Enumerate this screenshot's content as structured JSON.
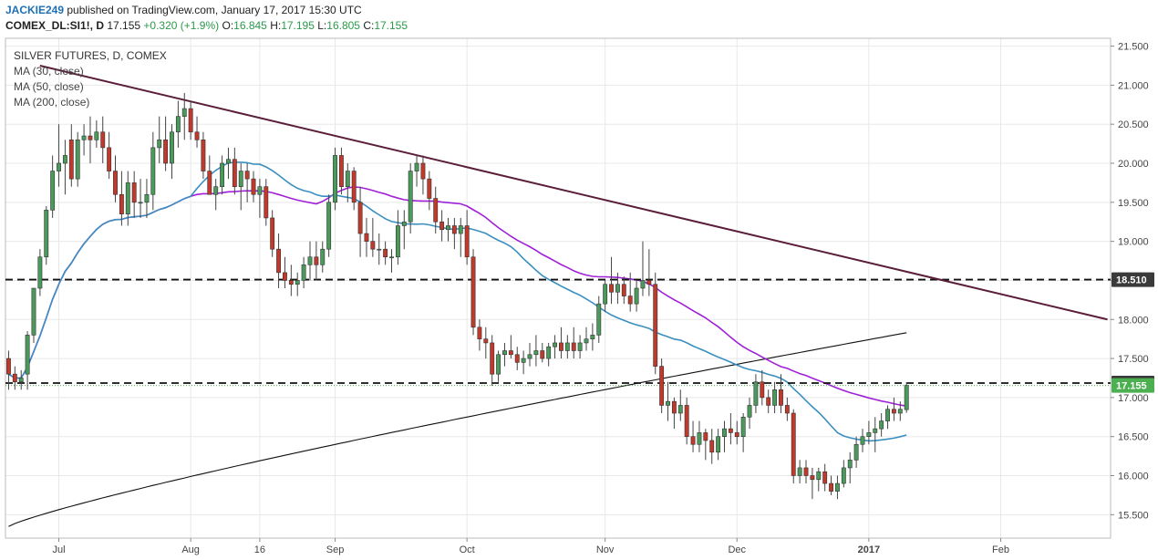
{
  "header": {
    "author": "JACKIE249",
    "published": "published on TradingView.com, January 17, 2017 15:30 UTC",
    "symbol": "COMEX_DL:SI1!, D",
    "last": "17.155",
    "change": "+0.320 (+1.9%)",
    "o_label": "O:",
    "o_value": "16.845",
    "h_label": "H:",
    "h_value": "17.195",
    "l_label": "L:",
    "l_value": "16.805",
    "c_label": "C:",
    "c_value": "17.155"
  },
  "legend": {
    "title": "SILVER FUTURES, D, COMEX",
    "ma30": "MA (30, close)",
    "ma50": "MA (50, close)",
    "ma200": "MA (200, close)"
  },
  "colors": {
    "up": "#4a9a5c",
    "down": "#c0392b",
    "wick": "#444444",
    "ma30": "#3b8fc0",
    "ma50": "#a020d8",
    "ma200": "#111111",
    "trendline": "#5a1e3a",
    "grid": "#e8e8e8",
    "axis_tag_bg": "#3a3a3a",
    "last_tag_bg": "#4caf50"
  },
  "chart_data": {
    "type": "candlestick",
    "title": "SILVER FUTURES, D, COMEX",
    "ylim": [
      15.2,
      21.6
    ],
    "y_ticks": [
      "21.500",
      "21.000",
      "20.500",
      "20.000",
      "19.500",
      "19.000",
      "18.500",
      "18.000",
      "17.500",
      "17.000",
      "16.500",
      "16.000",
      "15.500"
    ],
    "x_ticks": [
      {
        "label": "Jul",
        "bold": false,
        "bar": 8
      },
      {
        "label": "Aug",
        "bold": false,
        "bar": 29
      },
      {
        "label": "16",
        "bold": false,
        "bar": 40
      },
      {
        "label": "Sep",
        "bold": false,
        "bar": 52
      },
      {
        "label": "Oct",
        "bold": false,
        "bar": 73
      },
      {
        "label": "Nov",
        "bold": false,
        "bar": 95
      },
      {
        "label": "Dec",
        "bold": false,
        "bar": 116
      },
      {
        "label": "2017",
        "bold": true,
        "bar": 137
      },
      {
        "label": "Feb",
        "bold": false,
        "bar": 158
      }
    ],
    "n_bars_axis": 176,
    "candles": [
      [
        17.5,
        17.6,
        17.1,
        17.3
      ],
      [
        17.3,
        17.4,
        17.1,
        17.2
      ],
      [
        17.2,
        17.35,
        17.1,
        17.25
      ],
      [
        17.3,
        17.85,
        17.1,
        17.8
      ],
      [
        17.8,
        18.4,
        17.7,
        18.4
      ],
      [
        18.4,
        18.9,
        18.3,
        18.8
      ],
      [
        18.8,
        19.45,
        18.7,
        19.4
      ],
      [
        19.4,
        20.1,
        19.3,
        19.9
      ],
      [
        19.9,
        20.5,
        19.7,
        20.0
      ],
      [
        20.0,
        20.3,
        19.6,
        20.1
      ],
      [
        20.3,
        20.5,
        19.7,
        19.8
      ],
      [
        19.8,
        20.4,
        19.7,
        20.3
      ],
      [
        20.3,
        20.5,
        20.1,
        20.35
      ],
      [
        20.35,
        20.6,
        20.0,
        20.3
      ],
      [
        20.3,
        20.55,
        20.2,
        20.4
      ],
      [
        20.4,
        20.6,
        20.0,
        20.2
      ],
      [
        20.2,
        20.4,
        19.8,
        19.9
      ],
      [
        19.9,
        20.1,
        19.5,
        19.6
      ],
      [
        19.6,
        19.9,
        19.2,
        19.35
      ],
      [
        19.35,
        19.9,
        19.2,
        19.75
      ],
      [
        19.75,
        19.9,
        19.3,
        19.5
      ],
      [
        19.5,
        19.8,
        19.3,
        19.5
      ],
      [
        19.5,
        19.8,
        19.3,
        19.6
      ],
      [
        19.6,
        20.4,
        19.4,
        20.2
      ],
      [
        20.2,
        20.6,
        20.0,
        20.3
      ],
      [
        20.3,
        20.6,
        19.9,
        20.0
      ],
      [
        20.0,
        20.5,
        19.8,
        20.4
      ],
      [
        20.4,
        20.8,
        20.2,
        20.6
      ],
      [
        20.6,
        20.9,
        20.3,
        20.7
      ],
      [
        20.7,
        20.8,
        20.3,
        20.4
      ],
      [
        20.4,
        20.6,
        20.2,
        20.3
      ],
      [
        20.3,
        20.4,
        19.8,
        19.9
      ],
      [
        19.9,
        20.1,
        19.6,
        19.6
      ],
      [
        19.6,
        19.8,
        19.4,
        19.7
      ],
      [
        19.7,
        20.1,
        19.6,
        20.0
      ],
      [
        20.0,
        20.2,
        19.8,
        20.05
      ],
      [
        20.05,
        20.2,
        19.6,
        19.7
      ],
      [
        19.7,
        20.0,
        19.4,
        19.9
      ],
      [
        19.9,
        20.0,
        19.5,
        19.8
      ],
      [
        19.8,
        19.9,
        19.5,
        19.6
      ],
      [
        19.6,
        19.8,
        19.3,
        19.7
      ],
      [
        19.7,
        19.8,
        19.2,
        19.3
      ],
      [
        19.3,
        19.4,
        18.8,
        18.9
      ],
      [
        18.9,
        19.1,
        18.4,
        18.6
      ],
      [
        18.6,
        18.8,
        18.4,
        18.5
      ],
      [
        18.5,
        18.7,
        18.3,
        18.45
      ],
      [
        18.45,
        18.6,
        18.3,
        18.5
      ],
      [
        18.5,
        18.8,
        18.4,
        18.7
      ],
      [
        18.7,
        19.0,
        18.5,
        18.8
      ],
      [
        18.8,
        19.0,
        18.5,
        18.7
      ],
      [
        18.7,
        19.0,
        18.6,
        18.9
      ],
      [
        18.9,
        19.6,
        18.8,
        19.5
      ],
      [
        19.5,
        20.2,
        19.4,
        20.1
      ],
      [
        20.1,
        20.2,
        19.6,
        19.7
      ],
      [
        19.7,
        20.0,
        19.5,
        19.9
      ],
      [
        19.9,
        19.95,
        19.4,
        19.5
      ],
      [
        19.5,
        19.7,
        18.8,
        19.1
      ],
      [
        19.1,
        19.3,
        18.8,
        19.0
      ],
      [
        19.0,
        19.3,
        18.8,
        18.9
      ],
      [
        18.9,
        19.1,
        18.7,
        18.9
      ],
      [
        18.9,
        19.0,
        18.7,
        18.8
      ],
      [
        18.8,
        18.9,
        18.6,
        18.8
      ],
      [
        18.8,
        19.4,
        18.7,
        19.2
      ],
      [
        19.2,
        19.4,
        18.9,
        19.25
      ],
      [
        19.25,
        20.0,
        19.1,
        19.9
      ],
      [
        19.9,
        20.1,
        19.7,
        20.0
      ],
      [
        20.0,
        20.1,
        19.6,
        19.8
      ],
      [
        19.8,
        19.9,
        19.4,
        19.55
      ],
      [
        19.55,
        19.7,
        19.1,
        19.25
      ],
      [
        19.25,
        19.4,
        19.0,
        19.15
      ],
      [
        19.15,
        19.3,
        19.0,
        19.2
      ],
      [
        19.2,
        19.3,
        18.9,
        19.1
      ],
      [
        19.1,
        19.3,
        18.8,
        19.2
      ],
      [
        19.2,
        19.4,
        18.7,
        18.8
      ],
      [
        18.8,
        18.9,
        17.8,
        17.9
      ],
      [
        17.9,
        18.0,
        17.6,
        17.75
      ],
      [
        17.75,
        17.9,
        17.5,
        17.7
      ],
      [
        17.7,
        17.8,
        17.15,
        17.3
      ],
      [
        17.3,
        17.6,
        17.2,
        17.55
      ],
      [
        17.55,
        17.7,
        17.4,
        17.6
      ],
      [
        17.6,
        17.8,
        17.5,
        17.55
      ],
      [
        17.55,
        17.65,
        17.35,
        17.45
      ],
      [
        17.45,
        17.6,
        17.3,
        17.5
      ],
      [
        17.5,
        17.7,
        17.4,
        17.55
      ],
      [
        17.55,
        17.8,
        17.4,
        17.6
      ],
      [
        17.6,
        17.7,
        17.45,
        17.5
      ],
      [
        17.5,
        17.7,
        17.4,
        17.65
      ],
      [
        17.65,
        17.8,
        17.5,
        17.7
      ],
      [
        17.7,
        17.9,
        17.5,
        17.6
      ],
      [
        17.6,
        17.8,
        17.5,
        17.7
      ],
      [
        17.7,
        17.9,
        17.5,
        17.6
      ],
      [
        17.6,
        17.8,
        17.5,
        17.7
      ],
      [
        17.7,
        17.9,
        17.6,
        17.75
      ],
      [
        17.75,
        17.95,
        17.6,
        17.8
      ],
      [
        17.8,
        18.3,
        17.7,
        18.2
      ],
      [
        18.2,
        18.5,
        18.1,
        18.45
      ],
      [
        18.45,
        18.8,
        18.2,
        18.35
      ],
      [
        18.35,
        18.6,
        18.2,
        18.45
      ],
      [
        18.45,
        18.55,
        18.2,
        18.3
      ],
      [
        18.3,
        18.6,
        18.1,
        18.2
      ],
      [
        18.2,
        18.5,
        18.1,
        18.4
      ],
      [
        18.4,
        19.0,
        18.3,
        18.5
      ],
      [
        18.5,
        18.9,
        18.3,
        18.45
      ],
      [
        18.45,
        18.6,
        17.3,
        17.4
      ],
      [
        17.4,
        17.5,
        16.8,
        16.9
      ],
      [
        16.9,
        17.2,
        16.7,
        16.95
      ],
      [
        16.95,
        17.0,
        16.6,
        16.8
      ],
      [
        16.8,
        17.1,
        16.7,
        16.9
      ],
      [
        16.9,
        17.0,
        16.4,
        16.5
      ],
      [
        16.5,
        16.7,
        16.3,
        16.4
      ],
      [
        16.4,
        16.7,
        16.3,
        16.55
      ],
      [
        16.55,
        16.6,
        16.2,
        16.45
      ],
      [
        16.45,
        16.6,
        16.15,
        16.3
      ],
      [
        16.3,
        16.6,
        16.2,
        16.5
      ],
      [
        16.5,
        16.7,
        16.3,
        16.6
      ],
      [
        16.6,
        16.8,
        16.4,
        16.55
      ],
      [
        16.55,
        16.7,
        16.4,
        16.5
      ],
      [
        16.5,
        16.8,
        16.3,
        16.75
      ],
      [
        16.75,
        17.0,
        16.6,
        16.9
      ],
      [
        16.9,
        17.3,
        16.8,
        17.2
      ],
      [
        17.2,
        17.35,
        16.9,
        17.0
      ],
      [
        17.0,
        17.1,
        16.8,
        16.9
      ],
      [
        16.9,
        17.2,
        16.8,
        17.1
      ],
      [
        17.1,
        17.3,
        16.8,
        16.9
      ],
      [
        16.9,
        17.0,
        16.7,
        16.8
      ],
      [
        16.8,
        16.85,
        15.9,
        16.0
      ],
      [
        16.0,
        16.2,
        15.9,
        16.1
      ],
      [
        16.1,
        16.2,
        15.9,
        16.0
      ],
      [
        16.0,
        16.1,
        15.7,
        15.95
      ],
      [
        15.95,
        16.1,
        15.8,
        16.05
      ],
      [
        16.05,
        16.15,
        15.8,
        15.9
      ],
      [
        15.9,
        16.0,
        15.75,
        15.8
      ],
      [
        15.8,
        16.0,
        15.7,
        15.9
      ],
      [
        15.9,
        16.2,
        15.85,
        16.1
      ],
      [
        16.1,
        16.3,
        15.9,
        16.2
      ],
      [
        16.2,
        16.5,
        16.1,
        16.4
      ],
      [
        16.4,
        16.6,
        16.3,
        16.5
      ],
      [
        16.5,
        16.7,
        16.4,
        16.55
      ],
      [
        16.55,
        16.75,
        16.3,
        16.6
      ],
      [
        16.6,
        16.8,
        16.5,
        16.7
      ],
      [
        16.7,
        16.9,
        16.6,
        16.85
      ],
      [
        16.85,
        17.0,
        16.7,
        16.8
      ],
      [
        16.8,
        16.95,
        16.7,
        16.85
      ],
      [
        16.845,
        17.195,
        16.805,
        17.155
      ]
    ],
    "trendline": {
      "start": [
        5,
        21.25
      ],
      "end": [
        175,
        18.0
      ]
    },
    "horizontal_levels": [
      18.51,
      17.185
    ],
    "last_price": 17.155,
    "axis_tags": [
      {
        "label": "18.510",
        "value": 18.51,
        "style": "dark"
      },
      {
        "label": "17.185",
        "value": 17.185,
        "style": "dark"
      },
      {
        "label": "17.155",
        "value": 17.155,
        "style": "last"
      }
    ]
  }
}
